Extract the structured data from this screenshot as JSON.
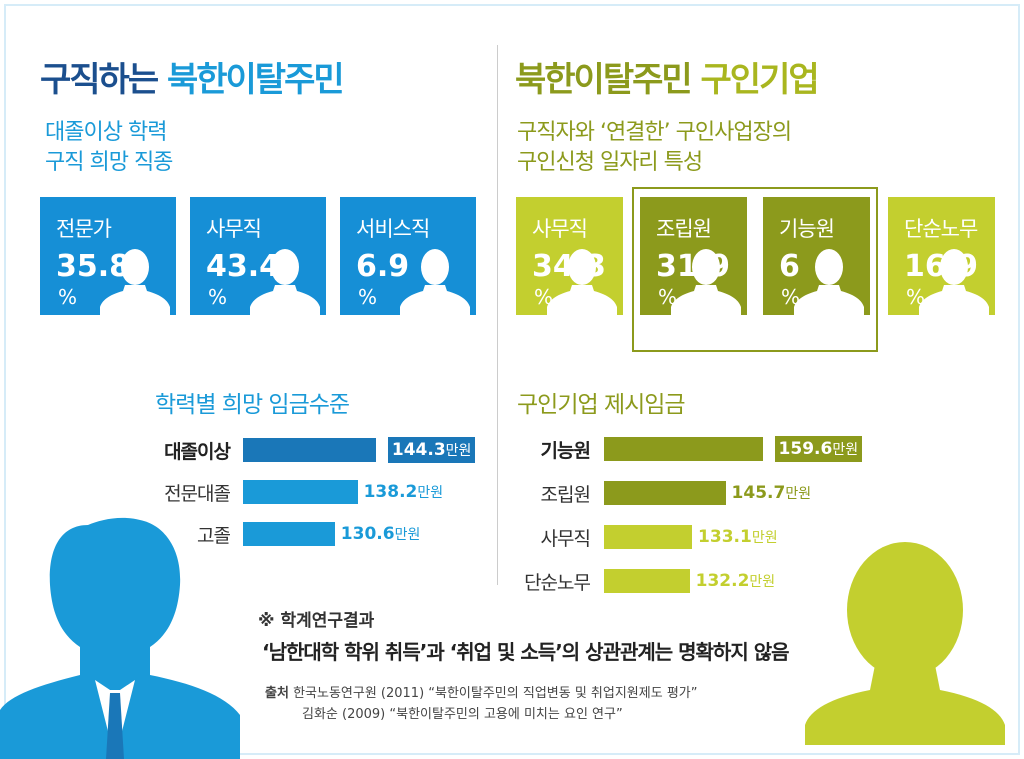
{
  "left": {
    "title_a": "구직하는",
    "title_b": "북한이탈주민",
    "subtitle_1": "대졸이상 학력",
    "subtitle_2": "구직 희망 직종",
    "cards": [
      {
        "label": "전문가",
        "value": "35.8",
        "unit": "%"
      },
      {
        "label": "사무직",
        "value": "43.4",
        "unit": "%"
      },
      {
        "label": "서비스직",
        "value": "6.9",
        "unit": "%"
      }
    ],
    "chart_title": "학력별 희망 임금수준"
  },
  "right": {
    "title_a": "북한이탈주민",
    "title_b": "구인기업",
    "subtitle_1": "구직자와 ‘연결한’ 구인사업장의",
    "subtitle_2": "구인신청 일자리 특성",
    "cards": [
      {
        "label": "사무직",
        "value": "34.3",
        "unit": "%"
      },
      {
        "label": "조립원",
        "value": "31.9",
        "unit": "%"
      },
      {
        "label": "기능원",
        "value": "6",
        "unit": "%"
      },
      {
        "label": "단순노무",
        "value": "16.9",
        "unit": "%"
      }
    ],
    "chart_title": "구인기업 제시임금"
  },
  "chart_data": [
    {
      "type": "bar",
      "title": "학력별 희망 임금수준",
      "unit": "만원",
      "categories": [
        "대졸이상",
        "전문대졸",
        "고졸"
      ],
      "values": [
        144.3,
        138.2,
        130.6
      ],
      "labels": [
        "144.3",
        "138.2",
        "130.6"
      ]
    },
    {
      "type": "bar",
      "title": "구인기업 제시임금",
      "unit": "만원",
      "categories": [
        "기능원",
        "조립원",
        "사무직",
        "단순노무"
      ],
      "values": [
        159.6,
        145.7,
        133.1,
        132.2
      ],
      "labels": [
        "159.6",
        "145.7",
        "133.1",
        "132.2"
      ]
    }
  ],
  "note": {
    "mark": "※ 학계연구결과",
    "main": "‘남한대학 학위 취득’과 ‘취업 및 소득’의 상관관계는 명확하지 않음",
    "source_label": "출처",
    "source_1": "한국노동연구원 (2011) “북한이탈주민의 직업변동 및 취업지원제도 평가”",
    "source_2": "김화순 (2009) “북한이탈주민의 고용에 미치는 요인 연구”"
  },
  "colors": {
    "blue_dark": "#1b4f8e",
    "blue": "#1a9ad8",
    "blue_card": "#168fd6",
    "blue_bar_top": "#1a77b8",
    "olive_dark": "#8c9a1c",
    "olive_light": "#c3cf2f",
    "olive_title": "#a9b61f"
  }
}
